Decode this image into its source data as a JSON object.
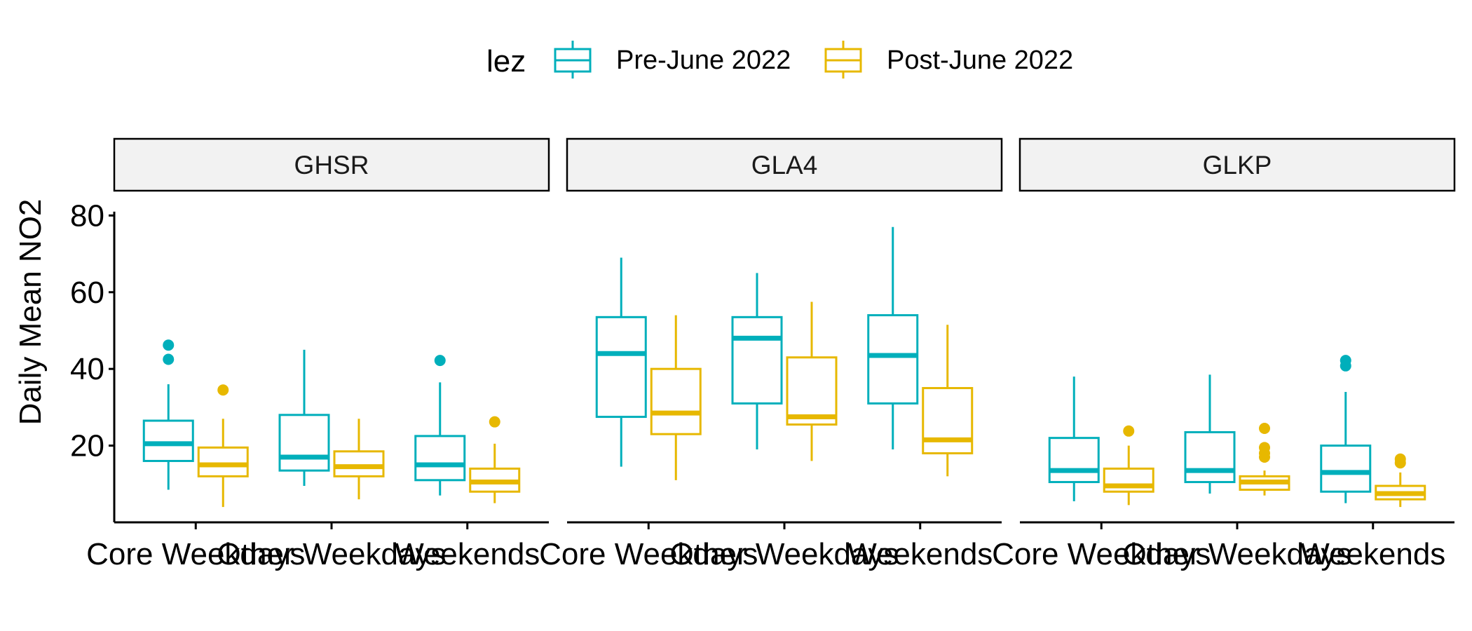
{
  "chart_data": {
    "type": "boxplot",
    "ylabel": "Daily Mean NO2",
    "ylim": [
      0,
      85
    ],
    "y_ticks": [
      "20",
      "40",
      "60",
      "80"
    ],
    "legend": {
      "title": "lez",
      "placement": "top"
    },
    "categories": [
      "Core Weekdays",
      "Other Weekdays",
      "Weekends"
    ],
    "series": [
      {
        "name": "Pre-June 2022",
        "color": "#00AFBB"
      },
      {
        "name": "Post-June 2022",
        "color": "#E7B800"
      }
    ],
    "panels": [
      {
        "title": "GHSR",
        "groups": [
          {
            "category": "Core Weekdays",
            "boxes": [
              {
                "series": "Pre-June 2022",
                "whisker_low": 8.5,
                "q1": 16,
                "median": 20.5,
                "q3": 26.5,
                "whisker_high": 36,
                "outliers": [
                  42.5,
                  46.2
                ]
              },
              {
                "series": "Post-June 2022",
                "whisker_low": 4,
                "q1": 12,
                "median": 15,
                "q3": 19.5,
                "whisker_high": 27,
                "outliers": [
                  34.5
                ]
              }
            ]
          },
          {
            "category": "Other Weekdays",
            "boxes": [
              {
                "series": "Pre-June 2022",
                "whisker_low": 9.5,
                "q1": 13.5,
                "median": 17,
                "q3": 28,
                "whisker_high": 45,
                "outliers": []
              },
              {
                "series": "Post-June 2022",
                "whisker_low": 6,
                "q1": 12,
                "median": 14.5,
                "q3": 18.5,
                "whisker_high": 27,
                "outliers": []
              }
            ]
          },
          {
            "category": "Weekends",
            "boxes": [
              {
                "series": "Pre-June 2022",
                "whisker_low": 7,
                "q1": 11,
                "median": 15,
                "q3": 22.5,
                "whisker_high": 36.5,
                "outliers": [
                  42.2
                ]
              },
              {
                "series": "Post-June 2022",
                "whisker_low": 5,
                "q1": 8,
                "median": 10.5,
                "q3": 14,
                "whisker_high": 20.5,
                "outliers": [
                  26.2
                ]
              }
            ]
          }
        ]
      },
      {
        "title": "GLA4",
        "groups": [
          {
            "category": "Core Weekdays",
            "boxes": [
              {
                "series": "Pre-June 2022",
                "whisker_low": 14.5,
                "q1": 27.5,
                "median": 44,
                "q3": 53.5,
                "whisker_high": 69,
                "outliers": []
              },
              {
                "series": "Post-June 2022",
                "whisker_low": 11,
                "q1": 23,
                "median": 28.5,
                "q3": 40,
                "whisker_high": 54,
                "outliers": []
              }
            ]
          },
          {
            "category": "Other Weekdays",
            "boxes": [
              {
                "series": "Pre-June 2022",
                "whisker_low": 19,
                "q1": 31,
                "median": 48,
                "q3": 53.5,
                "whisker_high": 65,
                "outliers": []
              },
              {
                "series": "Post-June 2022",
                "whisker_low": 16,
                "q1": 25.5,
                "median": 27.5,
                "q3": 43,
                "whisker_high": 57.5,
                "outliers": []
              }
            ]
          },
          {
            "category": "Weekends",
            "boxes": [
              {
                "series": "Pre-June 2022",
                "whisker_low": 19,
                "q1": 31,
                "median": 43.5,
                "q3": 54,
                "whisker_high": 77,
                "outliers": []
              },
              {
                "series": "Post-June 2022",
                "whisker_low": 12,
                "q1": 18,
                "median": 21.5,
                "q3": 35,
                "whisker_high": 51.5,
                "outliers": []
              }
            ]
          }
        ]
      },
      {
        "title": "GLKP",
        "groups": [
          {
            "category": "Core Weekdays",
            "boxes": [
              {
                "series": "Pre-June 2022",
                "whisker_low": 5.5,
                "q1": 10.5,
                "median": 13.5,
                "q3": 22,
                "whisker_high": 38,
                "outliers": []
              },
              {
                "series": "Post-June 2022",
                "whisker_low": 4.5,
                "q1": 8,
                "median": 9.5,
                "q3": 14,
                "whisker_high": 20,
                "outliers": [
                  23.8
                ]
              }
            ]
          },
          {
            "category": "Other Weekdays",
            "boxes": [
              {
                "series": "Pre-June 2022",
                "whisker_low": 7.5,
                "q1": 10.5,
                "median": 13.5,
                "q3": 23.5,
                "whisker_high": 38.5,
                "outliers": []
              },
              {
                "series": "Post-June 2022",
                "whisker_low": 7,
                "q1": 8.5,
                "median": 10.5,
                "q3": 12,
                "whisker_high": 13.5,
                "outliers": [
                  17,
                  18,
                  19.5,
                  24.5
                ]
              }
            ]
          },
          {
            "category": "Weekends",
            "boxes": [
              {
                "series": "Pre-June 2022",
                "whisker_low": 5,
                "q1": 8,
                "median": 13,
                "q3": 20,
                "whisker_high": 34,
                "outliers": [
                  40.8,
                  42.2
                ]
              },
              {
                "series": "Post-June 2022",
                "whisker_low": 4,
                "q1": 6,
                "median": 7.5,
                "q3": 9.5,
                "whisker_high": 13,
                "outliers": [
                  15.5,
                  16.5
                ]
              }
            ]
          }
        ]
      }
    ]
  }
}
